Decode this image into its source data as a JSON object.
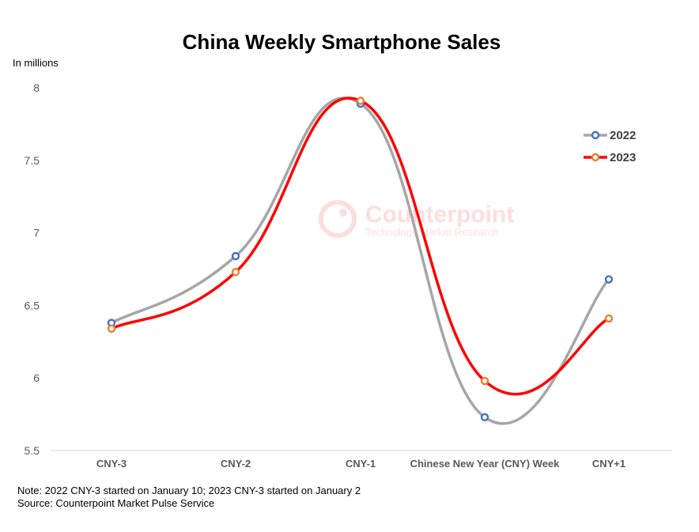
{
  "chart_data": {
    "type": "line",
    "title": "China Weekly Smartphone Sales",
    "ylabel": "In millions",
    "xlabel": "",
    "categories": [
      "CNY-3",
      "CNY-2",
      "CNY-1",
      "Chinese New Year (CNY) Week",
      "CNY+1"
    ],
    "ylim": [
      5.5,
      8
    ],
    "yticks": [
      "8",
      "7.5",
      "7",
      "6.5",
      "6",
      "5.5"
    ],
    "ytick_values": [
      8,
      7.5,
      7,
      6.5,
      6,
      5.5
    ],
    "series": [
      {
        "name": "2022",
        "values": [
          6.38,
          6.84,
          7.89,
          5.73,
          6.68
        ],
        "line_color": "#a6a6a6",
        "marker_color": "#4472c4"
      },
      {
        "name": "2023",
        "values": [
          6.34,
          6.73,
          7.91,
          5.98,
          6.41
        ],
        "line_color": "#ff0000",
        "marker_color": "#ed7d31"
      }
    ],
    "legend_position": "right",
    "grid": false
  },
  "watermark": {
    "brand": "Counterpoint",
    "tagline": "Technology Market Research"
  },
  "notes": {
    "line1": "Note: 2022 CNY-3 started on January 10; 2023 CNY-3 started on January 2",
    "line2": "Source: Counterpoint Market Pulse Service"
  }
}
